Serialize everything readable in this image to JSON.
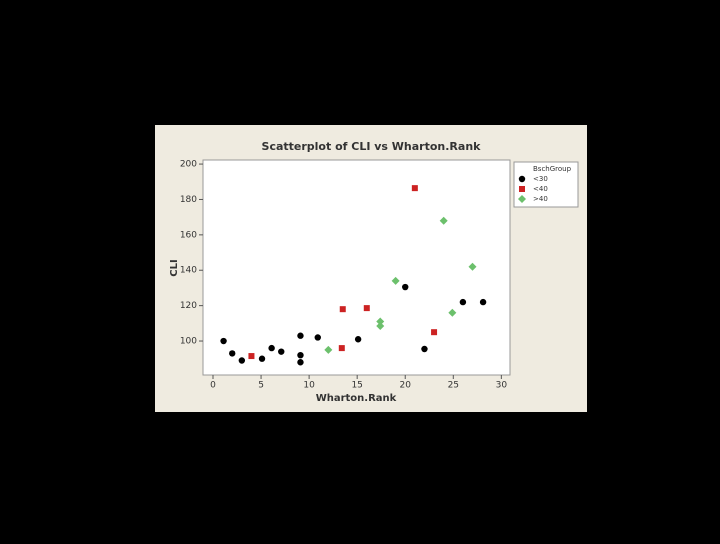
{
  "chart_data": {
    "type": "scatter",
    "title": "Scatterplot of CLI vs Wharton.Rank",
    "x_label": "Wharton.Rank",
    "y_label": "CLI",
    "legend_title": "BschGroup",
    "legend_position": "right",
    "xlim": [
      -1.04,
      30.9
    ],
    "xticks": [
      0,
      5,
      10,
      15,
      20,
      25,
      30
    ],
    "ylim": [
      80.8,
      202.3
    ],
    "yticks": [
      100,
      120,
      140,
      160,
      180,
      200
    ],
    "grid": false,
    "series": [
      {
        "name": "<30",
        "color": "#000000",
        "marker": "circle",
        "x": [
          1.1,
          2,
          3,
          5.1,
          6.1,
          7.1,
          9.1,
          9.1,
          9.1,
          10.9,
          15.1,
          20,
          22,
          26,
          28.1
        ],
        "y": [
          100,
          93,
          89,
          90,
          96,
          94,
          103,
          92,
          88,
          102,
          101,
          130.5,
          95.5,
          122,
          122
        ]
      },
      {
        "name": "<40",
        "color": "#cc2222",
        "marker": "square",
        "x": [
          4,
          13.5,
          16,
          13.4,
          21,
          23
        ],
        "y": [
          91.5,
          118,
          118.6,
          96,
          186.4,
          105
        ]
      },
      {
        "name": ">40",
        "color": "#6cc06c",
        "marker": "diamond",
        "x": [
          12,
          17.4,
          17.4,
          19,
          24,
          24.9,
          27
        ],
        "y": [
          95,
          111,
          108.5,
          134,
          168,
          116,
          142
        ]
      }
    ]
  }
}
